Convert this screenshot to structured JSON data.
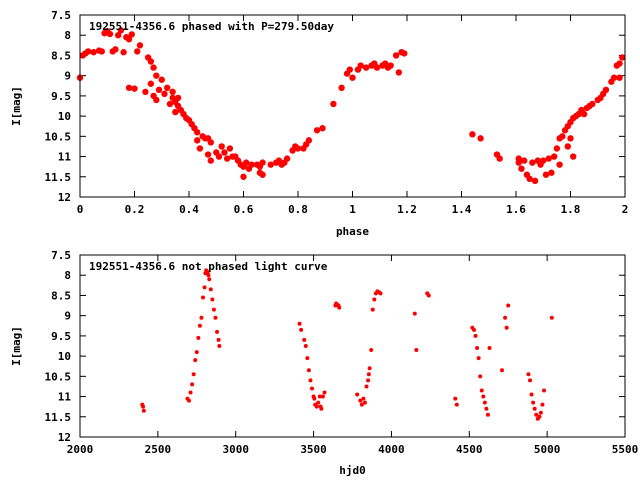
{
  "chart_data": [
    {
      "type": "scatter",
      "title": "192551-4356.6 phased with P=279.50day",
      "xlabel": "phase",
      "ylabel": "I[mag]",
      "xlim": [
        0,
        2
      ],
      "ylim": [
        12,
        7.5
      ],
      "y_inverted": true,
      "grid": false,
      "legend": "none",
      "color": "#ff0000",
      "x_ticks": [
        "0",
        "0.2",
        "0.4",
        "0.6",
        "0.8",
        "1",
        "1.2",
        "1.4",
        "1.6",
        "1.8",
        "2"
      ],
      "y_ticks": [
        "7.5",
        "8",
        "8.5",
        "9",
        "9.5",
        "10",
        "10.5",
        "11",
        "11.5",
        "12"
      ],
      "series": [
        {
          "points": [
            [
              0.0,
              9.05
            ],
            [
              0.01,
              8.5
            ],
            [
              0.02,
              8.45
            ],
            [
              0.03,
              8.4
            ],
            [
              0.05,
              8.42
            ],
            [
              0.07,
              8.38
            ],
            [
              0.08,
              8.4
            ],
            [
              0.09,
              7.95
            ],
            [
              0.1,
              7.9
            ],
            [
              0.11,
              7.97
            ],
            [
              0.12,
              8.4
            ],
            [
              0.13,
              8.35
            ],
            [
              0.14,
              8.0
            ],
            [
              0.15,
              7.88
            ],
            [
              0.16,
              8.42
            ],
            [
              0.17,
              8.05
            ],
            [
              0.18,
              8.1
            ],
            [
              0.19,
              7.98
            ],
            [
              0.18,
              9.3
            ],
            [
              0.2,
              9.32
            ],
            [
              0.21,
              8.4
            ],
            [
              0.22,
              8.25
            ],
            [
              0.24,
              9.4
            ],
            [
              0.25,
              8.55
            ],
            [
              0.26,
              8.65
            ],
            [
              0.26,
              9.2
            ],
            [
              0.27,
              9.5
            ],
            [
              0.27,
              8.8
            ],
            [
              0.28,
              9.6
            ],
            [
              0.28,
              9.0
            ],
            [
              0.29,
              9.35
            ],
            [
              0.3,
              9.1
            ],
            [
              0.31,
              9.45
            ],
            [
              0.32,
              9.3
            ],
            [
              0.33,
              9.7
            ],
            [
              0.34,
              9.55
            ],
            [
              0.34,
              9.4
            ],
            [
              0.35,
              9.65
            ],
            [
              0.35,
              9.9
            ],
            [
              0.36,
              9.55
            ],
            [
              0.36,
              9.75
            ],
            [
              0.37,
              9.85
            ],
            [
              0.38,
              9.95
            ],
            [
              0.39,
              10.05
            ],
            [
              0.4,
              10.1
            ],
            [
              0.41,
              10.2
            ],
            [
              0.42,
              10.3
            ],
            [
              0.43,
              10.4
            ],
            [
              0.43,
              10.6
            ],
            [
              0.44,
              10.8
            ],
            [
              0.45,
              10.5
            ],
            [
              0.46,
              10.55
            ],
            [
              0.47,
              10.55
            ],
            [
              0.48,
              10.65
            ],
            [
              0.47,
              10.95
            ],
            [
              0.48,
              11.1
            ],
            [
              0.5,
              10.9
            ],
            [
              0.51,
              11.0
            ],
            [
              0.52,
              10.75
            ],
            [
              0.53,
              10.9
            ],
            [
              0.54,
              11.05
            ],
            [
              0.55,
              10.8
            ],
            [
              0.56,
              11.0
            ],
            [
              0.57,
              11.0
            ],
            [
              0.58,
              11.1
            ],
            [
              0.59,
              11.2
            ],
            [
              0.6,
              11.5
            ],
            [
              0.6,
              11.25
            ],
            [
              0.61,
              11.15
            ],
            [
              0.62,
              11.3
            ],
            [
              0.63,
              11.2
            ],
            [
              0.65,
              11.2
            ],
            [
              0.66,
              11.25
            ],
            [
              0.67,
              11.15
            ],
            [
              0.66,
              11.4
            ],
            [
              0.67,
              11.45
            ],
            [
              0.7,
              11.2
            ],
            [
              0.72,
              11.15
            ],
            [
              0.73,
              11.1
            ],
            [
              0.74,
              11.2
            ],
            [
              0.75,
              11.15
            ],
            [
              0.76,
              11.05
            ],
            [
              0.78,
              10.85
            ],
            [
              0.79,
              10.75
            ],
            [
              0.8,
              10.8
            ],
            [
              0.82,
              10.8
            ],
            [
              0.83,
              10.7
            ],
            [
              0.84,
              10.6
            ],
            [
              0.87,
              10.35
            ],
            [
              0.89,
              10.3
            ],
            [
              0.93,
              9.7
            ],
            [
              0.96,
              9.3
            ],
            [
              0.98,
              8.95
            ],
            [
              0.99,
              8.85
            ],
            [
              1.0,
              9.05
            ],
            [
              1.02,
              8.85
            ],
            [
              1.03,
              8.75
            ],
            [
              1.05,
              8.8
            ],
            [
              1.07,
              8.75
            ],
            [
              1.08,
              8.7
            ],
            [
              1.09,
              8.8
            ],
            [
              1.11,
              8.75
            ],
            [
              1.12,
              8.7
            ],
            [
              1.13,
              8.8
            ],
            [
              1.14,
              8.75
            ],
            [
              1.17,
              8.92
            ],
            [
              1.16,
              8.5
            ],
            [
              1.18,
              8.42
            ],
            [
              1.19,
              8.45
            ],
            [
              1.44,
              10.45
            ],
            [
              1.47,
              10.55
            ],
            [
              1.53,
              10.95
            ],
            [
              1.54,
              11.05
            ],
            [
              1.61,
              11.05
            ],
            [
              1.61,
              11.15
            ],
            [
              1.62,
              11.3
            ],
            [
              1.63,
              11.1
            ],
            [
              1.64,
              11.45
            ],
            [
              1.65,
              11.55
            ],
            [
              1.66,
              11.15
            ],
            [
              1.67,
              11.6
            ],
            [
              1.68,
              11.1
            ],
            [
              1.69,
              11.2
            ],
            [
              1.7,
              11.1
            ],
            [
              1.71,
              11.45
            ],
            [
              1.72,
              11.05
            ],
            [
              1.73,
              11.4
            ],
            [
              1.74,
              11.0
            ],
            [
              1.75,
              10.8
            ],
            [
              1.76,
              11.2
            ],
            [
              1.76,
              10.55
            ],
            [
              1.77,
              10.5
            ],
            [
              1.78,
              10.35
            ],
            [
              1.79,
              10.25
            ],
            [
              1.8,
              10.15
            ],
            [
              1.81,
              10.05
            ],
            [
              1.82,
              10.0
            ],
            [
              1.83,
              9.95
            ],
            [
              1.84,
              9.85
            ],
            [
              1.85,
              9.95
            ],
            [
              1.86,
              9.8
            ],
            [
              1.87,
              9.75
            ],
            [
              1.88,
              9.7
            ],
            [
              1.9,
              9.6
            ],
            [
              1.91,
              9.55
            ],
            [
              1.92,
              9.45
            ],
            [
              1.93,
              9.35
            ],
            [
              1.95,
              9.15
            ],
            [
              1.96,
              9.05
            ],
            [
              1.97,
              8.75
            ],
            [
              1.98,
              8.7
            ],
            [
              1.99,
              8.55
            ],
            [
              1.98,
              9.05
            ],
            [
              1.79,
              10.75
            ],
            [
              1.8,
              10.55
            ],
            [
              1.81,
              11.0
            ]
          ]
        }
      ],
      "annotation": "192551-4356.6 phased with P=279.50day"
    },
    {
      "type": "scatter",
      "title": "192551-4356.6 not phased light curve",
      "xlabel": "hjd0",
      "ylabel": "I[mag]",
      "xlim": [
        2000,
        5500
      ],
      "ylim": [
        12,
        7.5
      ],
      "y_inverted": true,
      "grid": false,
      "legend": "none",
      "color": "#ff0000",
      "x_ticks": [
        "2000",
        "2500",
        "3000",
        "3500",
        "4000",
        "4500",
        "5000",
        "5500"
      ],
      "y_ticks": [
        "7.5",
        "8",
        "8.5",
        "9",
        "9.5",
        "10",
        "10.5",
        "11",
        "11.5",
        "12"
      ],
      "series": [
        {
          "points": [
            [
              2400,
              11.2
            ],
            [
              2405,
              11.25
            ],
            [
              2410,
              11.35
            ],
            [
              2690,
              11.05
            ],
            [
              2700,
              11.1
            ],
            [
              2710,
              10.9
            ],
            [
              2720,
              10.7
            ],
            [
              2730,
              10.45
            ],
            [
              2740,
              10.1
            ],
            [
              2750,
              9.9
            ],
            [
              2760,
              9.55
            ],
            [
              2770,
              9.25
            ],
            [
              2780,
              9.05
            ],
            [
              2790,
              8.55
            ],
            [
              2800,
              8.3
            ],
            [
              2805,
              7.95
            ],
            [
              2810,
              7.88
            ],
            [
              2815,
              7.9
            ],
            [
              2820,
              7.95
            ],
            [
              2825,
              8.0
            ],
            [
              2830,
              8.1
            ],
            [
              2840,
              8.35
            ],
            [
              2850,
              8.6
            ],
            [
              2860,
              8.85
            ],
            [
              2870,
              9.05
            ],
            [
              2880,
              9.4
            ],
            [
              2890,
              9.6
            ],
            [
              2895,
              9.75
            ],
            [
              3410,
              9.2
            ],
            [
              3420,
              9.35
            ],
            [
              3440,
              9.6
            ],
            [
              3450,
              9.75
            ],
            [
              3460,
              10.05
            ],
            [
              3470,
              10.35
            ],
            [
              3480,
              10.6
            ],
            [
              3490,
              10.8
            ],
            [
              3500,
              11.0
            ],
            [
              3505,
              11.05
            ],
            [
              3510,
              11.2
            ],
            [
              3520,
              11.25
            ],
            [
              3530,
              11.15
            ],
            [
              3540,
              11.0
            ],
            [
              3545,
              11.25
            ],
            [
              3550,
              11.3
            ],
            [
              3560,
              11.0
            ],
            [
              3570,
              10.9
            ],
            [
              3640,
              8.75
            ],
            [
              3645,
              8.7
            ],
            [
              3650,
              8.72
            ],
            [
              3660,
              8.75
            ],
            [
              3665,
              8.8
            ],
            [
              3780,
              10.95
            ],
            [
              3800,
              11.1
            ],
            [
              3810,
              11.2
            ],
            [
              3820,
              11.05
            ],
            [
              3830,
              11.15
            ],
            [
              3840,
              10.75
            ],
            [
              3850,
              10.6
            ],
            [
              3855,
              10.45
            ],
            [
              3860,
              10.3
            ],
            [
              3870,
              9.85
            ],
            [
              3880,
              8.85
            ],
            [
              3890,
              8.6
            ],
            [
              3900,
              8.45
            ],
            [
              3910,
              8.4
            ],
            [
              3920,
              8.42
            ],
            [
              3930,
              8.45
            ],
            [
              4150,
              8.95
            ],
            [
              4160,
              9.85
            ],
            [
              4230,
              8.45
            ],
            [
              4240,
              8.5
            ],
            [
              4410,
              11.05
            ],
            [
              4420,
              11.2
            ],
            [
              4520,
              9.3
            ],
            [
              4530,
              9.35
            ],
            [
              4540,
              9.5
            ],
            [
              4550,
              9.8
            ],
            [
              4560,
              10.05
            ],
            [
              4570,
              10.5
            ],
            [
              4580,
              10.85
            ],
            [
              4590,
              11.0
            ],
            [
              4600,
              11.15
            ],
            [
              4610,
              11.3
            ],
            [
              4620,
              11.45
            ],
            [
              4630,
              9.8
            ],
            [
              4710,
              10.35
            ],
            [
              4730,
              9.05
            ],
            [
              4740,
              9.3
            ],
            [
              4750,
              8.75
            ],
            [
              4880,
              10.45
            ],
            [
              4890,
              10.6
            ],
            [
              4900,
              10.95
            ],
            [
              4910,
              11.15
            ],
            [
              4920,
              11.3
            ],
            [
              4930,
              11.45
            ],
            [
              4940,
              11.55
            ],
            [
              4950,
              11.5
            ],
            [
              4960,
              11.4
            ],
            [
              4970,
              11.2
            ],
            [
              4980,
              10.85
            ],
            [
              5030,
              9.05
            ]
          ]
        }
      ],
      "annotation": "192551-4356.6 not phased light curve"
    }
  ]
}
